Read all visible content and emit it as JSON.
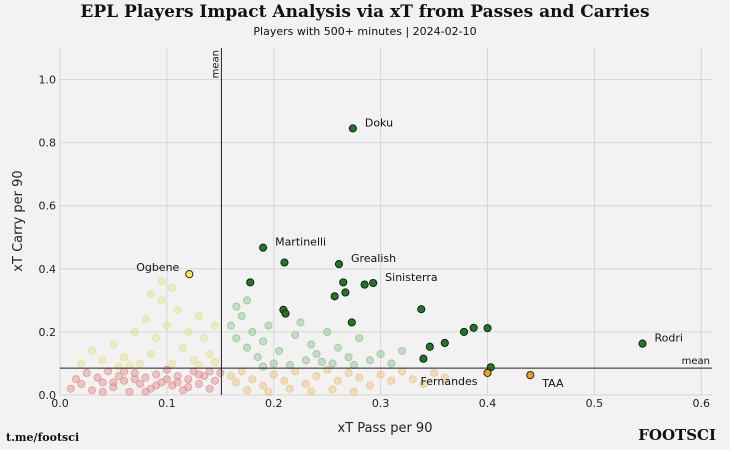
{
  "chart_data": {
    "type": "scatter",
    "title": "EPL Players Impact Analysis via xT from Passes and Carries",
    "subtitle": "Players with 500+ minutes | 2024-02-10",
    "xlabel": "xT Pass per 90",
    "ylabel": "xT Carry per 90",
    "xlim": [
      0.0,
      0.61
    ],
    "ylim": [
      0.0,
      1.1
    ],
    "xticks": [
      "0.0",
      "0.1",
      "0.2",
      "0.3",
      "0.4",
      "0.5",
      "0.6"
    ],
    "yticks": [
      "0.0",
      "0.2",
      "0.4",
      "0.6",
      "0.8",
      "1.0"
    ],
    "grid": true,
    "mean_lines": {
      "x": 0.151,
      "y": 0.085,
      "label": "mean"
    },
    "colors": {
      "top_right": "#1f7a1f",
      "top_left": "#f2ef4a",
      "bottom_right": "#f0a020",
      "bottom_left": "#d14a4a",
      "background_green": "#8bbf8b",
      "background_yellow": "#e3e08a",
      "background_orange": "#e8c07a",
      "background_red": "#e38a8a"
    },
    "labeled_players": [
      {
        "name": "Doku",
        "x": 0.274,
        "y": 0.845,
        "quadrant": "top_right"
      },
      {
        "name": "Martinelli",
        "x": 0.19,
        "y": 0.467,
        "quadrant": "top_right"
      },
      {
        "name": "Grealish",
        "x": 0.261,
        "y": 0.415,
        "quadrant": "top_right"
      },
      {
        "name": "Sinisterra",
        "x": 0.293,
        "y": 0.355,
        "quadrant": "top_right"
      },
      {
        "name": "Rodri",
        "x": 0.545,
        "y": 0.163,
        "quadrant": "top_right"
      },
      {
        "name": "Ogbene",
        "x": 0.121,
        "y": 0.383,
        "quadrant": "top_left"
      },
      {
        "name": "Fernandes",
        "x": 0.4,
        "y": 0.07,
        "quadrant": "bottom_right"
      },
      {
        "name": "TAA",
        "x": 0.44,
        "y": 0.063,
        "quadrant": "bottom_right"
      }
    ],
    "highlighted_points": [
      [
        0.178,
        0.357
      ],
      [
        0.21,
        0.42
      ],
      [
        0.209,
        0.27
      ],
      [
        0.211,
        0.258
      ],
      [
        0.265,
        0.357
      ],
      [
        0.267,
        0.325
      ],
      [
        0.257,
        0.313
      ],
      [
        0.285,
        0.35
      ],
      [
        0.273,
        0.23
      ],
      [
        0.338,
        0.272
      ],
      [
        0.346,
        0.153
      ],
      [
        0.36,
        0.165
      ],
      [
        0.378,
        0.2
      ],
      [
        0.387,
        0.213
      ],
      [
        0.4,
        0.212
      ],
      [
        0.34,
        0.115
      ],
      [
        0.403,
        0.088
      ]
    ],
    "background_points": [
      [
        0.16,
        0.22
      ],
      [
        0.165,
        0.18
      ],
      [
        0.17,
        0.25
      ],
      [
        0.175,
        0.15
      ],
      [
        0.18,
        0.2
      ],
      [
        0.185,
        0.12
      ],
      [
        0.19,
        0.17
      ],
      [
        0.195,
        0.22
      ],
      [
        0.2,
        0.1
      ],
      [
        0.205,
        0.14
      ],
      [
        0.22,
        0.19
      ],
      [
        0.225,
        0.23
      ],
      [
        0.23,
        0.11
      ],
      [
        0.235,
        0.16
      ],
      [
        0.24,
        0.13
      ],
      [
        0.25,
        0.2
      ],
      [
        0.255,
        0.1
      ],
      [
        0.26,
        0.15
      ],
      [
        0.27,
        0.12
      ],
      [
        0.28,
        0.18
      ],
      [
        0.29,
        0.11
      ],
      [
        0.3,
        0.13
      ],
      [
        0.31,
        0.1
      ],
      [
        0.32,
        0.14
      ],
      [
        0.165,
        0.28
      ],
      [
        0.175,
        0.3
      ],
      [
        0.19,
        0.09
      ],
      [
        0.215,
        0.095
      ],
      [
        0.245,
        0.105
      ],
      [
        0.275,
        0.095
      ],
      [
        0.02,
        0.1
      ],
      [
        0.03,
        0.14
      ],
      [
        0.04,
        0.11
      ],
      [
        0.05,
        0.16
      ],
      [
        0.06,
        0.12
      ],
      [
        0.07,
        0.2
      ],
      [
        0.075,
        0.1
      ],
      [
        0.08,
        0.24
      ],
      [
        0.085,
        0.13
      ],
      [
        0.09,
        0.18
      ],
      [
        0.095,
        0.3
      ],
      [
        0.1,
        0.22
      ],
      [
        0.105,
        0.1
      ],
      [
        0.11,
        0.27
      ],
      [
        0.115,
        0.15
      ],
      [
        0.12,
        0.2
      ],
      [
        0.125,
        0.11
      ],
      [
        0.13,
        0.25
      ],
      [
        0.135,
        0.18
      ],
      [
        0.14,
        0.13
      ],
      [
        0.145,
        0.22
      ],
      [
        0.085,
        0.32
      ],
      [
        0.095,
        0.36
      ],
      [
        0.105,
        0.34
      ],
      [
        0.065,
        0.095
      ],
      [
        0.055,
        0.09
      ],
      [
        0.13,
        0.095
      ],
      [
        0.145,
        0.105
      ],
      [
        0.16,
        0.06
      ],
      [
        0.165,
        0.04
      ],
      [
        0.17,
        0.075
      ],
      [
        0.18,
        0.05
      ],
      [
        0.19,
        0.03
      ],
      [
        0.2,
        0.065
      ],
      [
        0.21,
        0.045
      ],
      [
        0.22,
        0.075
      ],
      [
        0.23,
        0.035
      ],
      [
        0.24,
        0.06
      ],
      [
        0.25,
        0.08
      ],
      [
        0.26,
        0.045
      ],
      [
        0.27,
        0.07
      ],
      [
        0.28,
        0.055
      ],
      [
        0.29,
        0.03
      ],
      [
        0.3,
        0.065
      ],
      [
        0.31,
        0.045
      ],
      [
        0.32,
        0.075
      ],
      [
        0.33,
        0.05
      ],
      [
        0.34,
        0.035
      ],
      [
        0.35,
        0.07
      ],
      [
        0.36,
        0.055
      ],
      [
        0.175,
        0.015
      ],
      [
        0.195,
        0.01
      ],
      [
        0.215,
        0.02
      ],
      [
        0.235,
        0.012
      ],
      [
        0.255,
        0.018
      ],
      [
        0.275,
        0.01
      ],
      [
        0.01,
        0.02
      ],
      [
        0.015,
        0.05
      ],
      [
        0.02,
        0.035
      ],
      [
        0.025,
        0.07
      ],
      [
        0.03,
        0.015
      ],
      [
        0.035,
        0.055
      ],
      [
        0.04,
        0.04
      ],
      [
        0.045,
        0.075
      ],
      [
        0.05,
        0.025
      ],
      [
        0.055,
        0.06
      ],
      [
        0.06,
        0.045
      ],
      [
        0.065,
        0.01
      ],
      [
        0.07,
        0.07
      ],
      [
        0.075,
        0.035
      ],
      [
        0.08,
        0.055
      ],
      [
        0.085,
        0.02
      ],
      [
        0.09,
        0.065
      ],
      [
        0.095,
        0.04
      ],
      [
        0.1,
        0.08
      ],
      [
        0.105,
        0.03
      ],
      [
        0.11,
        0.06
      ],
      [
        0.115,
        0.015
      ],
      [
        0.12,
        0.05
      ],
      [
        0.125,
        0.075
      ],
      [
        0.13,
        0.035
      ],
      [
        0.135,
        0.06
      ],
      [
        0.14,
        0.02
      ],
      [
        0.145,
        0.045
      ],
      [
        0.15,
        0.07
      ],
      [
        0.04,
        0.01
      ],
      [
        0.06,
        0.075
      ],
      [
        0.08,
        0.01
      ],
      [
        0.1,
        0.05
      ],
      [
        0.12,
        0.025
      ],
      [
        0.14,
        0.075
      ],
      [
        0.07,
        0.05
      ],
      [
        0.09,
        0.03
      ],
      [
        0.11,
        0.04
      ],
      [
        0.13,
        0.065
      ],
      [
        0.05,
        0.04
      ]
    ]
  },
  "footer": {
    "left": "t.me/footsci",
    "right": "FOOTSCI"
  }
}
